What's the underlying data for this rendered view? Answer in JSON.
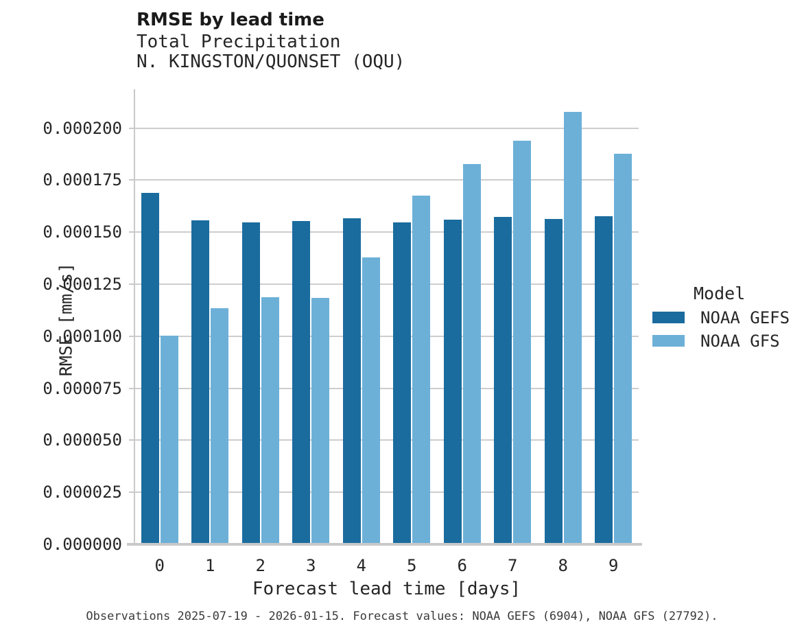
{
  "header": {
    "title": "RMSE by lead time",
    "subtitle1": "Total Precipitation",
    "subtitle2": "N. KINGSTON/QUONSET (OQU)"
  },
  "chart_data": {
    "type": "bar",
    "title": "RMSE by lead time",
    "subtitle": [
      "Total Precipitation",
      "N. KINGSTON/QUONSET (OQU)"
    ],
    "categories": [
      "0",
      "1",
      "2",
      "3",
      "4",
      "5",
      "6",
      "7",
      "8",
      "9"
    ],
    "series": [
      {
        "name": "NOAA GEFS",
        "color": "#1A6C9E",
        "values": [
          0.000169,
          0.0001556,
          0.0001546,
          0.0001553,
          0.0001566,
          0.0001548,
          0.0001559,
          0.0001572,
          0.0001564,
          0.0001577
        ]
      },
      {
        "name": "NOAA GFS",
        "color": "#6CB0D8",
        "values": [
          0.0001002,
          0.0001135,
          0.0001186,
          0.0001183,
          0.000138,
          0.0001677,
          0.0001828,
          0.0001939,
          0.0002078,
          0.0001878
        ]
      }
    ],
    "xlabel": "Forecast lead time [days]",
    "ylabel": "RMSE [mm/s]",
    "ylim": [
      0,
      0.0002187
    ],
    "yticks": [
      0,
      2.5e-05,
      5e-05,
      7.5e-05,
      0.0001,
      0.000125,
      0.00015,
      0.000175,
      0.0002
    ],
    "ytick_labels": [
      "0.000000",
      "0.000025",
      "0.000050",
      "0.000075",
      "0.000100",
      "0.000125",
      "0.000150",
      "0.000175",
      "0.000200"
    ],
    "grid": "horizontal-gridlines-on",
    "legend_position": "right",
    "legend_title": "Model"
  },
  "legend": {
    "title": "Model",
    "entries": [
      {
        "label": "NOAA GEFS",
        "color": "#1A6C9E"
      },
      {
        "label": "NOAA GFS",
        "color": "#6CB0D8"
      }
    ]
  },
  "caption": "Observations 2025-07-19 - 2026-01-15. Forecast values: NOAA GEFS (6904), NOAA GFS (27792).",
  "colors": {
    "background": "#ffffff",
    "gridline": "#cdcdcd",
    "axis_line": "#c9c9c9",
    "title_text": "#1a1a1a",
    "body_text": "#262626",
    "caption_text": "#3a3a3a",
    "gefs_bar": "#1A6C9E",
    "gfs_bar": "#6CB0D8"
  }
}
